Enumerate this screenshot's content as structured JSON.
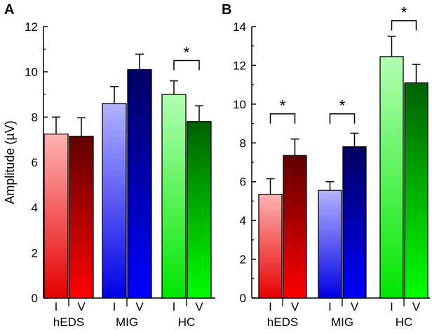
{
  "colors": {
    "hEDS_I": [
      "#ffb3b3",
      "#e60000"
    ],
    "hEDS_V": [
      "#600000",
      "#ff0000"
    ],
    "MIG_I": [
      "#b3b3ff",
      "#0000e6"
    ],
    "MIG_V": [
      "#000060",
      "#0000ff"
    ],
    "HC_I": [
      "#b3ffb3",
      "#00e600"
    ],
    "HC_V": [
      "#006000",
      "#00ff00"
    ]
  },
  "chart_data": [
    {
      "panel": "A",
      "type": "bar",
      "ylabel": "Amplitude (µV)",
      "ylim": [
        0,
        12
      ],
      "yticks": [
        "0",
        "2",
        "4",
        "6",
        "8",
        "10",
        "12"
      ],
      "groups": [
        "hEDS",
        "MIG",
        "HC"
      ],
      "bar_labels": [
        "I",
        "V"
      ],
      "bars": [
        {
          "group": "hEDS",
          "cond": "I",
          "value": 7.25,
          "err": 0.75,
          "color_key": "hEDS_I"
        },
        {
          "group": "hEDS",
          "cond": "V",
          "value": 7.15,
          "err": 0.82,
          "color_key": "hEDS_V"
        },
        {
          "group": "MIG",
          "cond": "I",
          "value": 8.6,
          "err": 0.75,
          "color_key": "MIG_I"
        },
        {
          "group": "MIG",
          "cond": "V",
          "value": 10.1,
          "err": 0.68,
          "color_key": "MIG_V"
        },
        {
          "group": "HC",
          "cond": "I",
          "value": 9.0,
          "err": 0.6,
          "color_key": "HC_I"
        },
        {
          "group": "HC",
          "cond": "V",
          "value": 7.8,
          "err": 0.7,
          "color_key": "HC_V"
        }
      ],
      "significance": [
        {
          "group": "HC",
          "label": "*",
          "y": 10.5
        }
      ]
    },
    {
      "panel": "B",
      "type": "bar",
      "ylabel": "",
      "ylim": [
        0,
        14
      ],
      "yticks": [
        "0",
        "2",
        "4",
        "6",
        "8",
        "10",
        "12",
        "14"
      ],
      "groups": [
        "hEDS",
        "MIG",
        "HC"
      ],
      "bar_labels": [
        "I",
        "V"
      ],
      "bars": [
        {
          "group": "hEDS",
          "cond": "I",
          "value": 5.35,
          "err": 0.8,
          "color_key": "hEDS_I"
        },
        {
          "group": "hEDS",
          "cond": "V",
          "value": 7.35,
          "err": 0.85,
          "color_key": "hEDS_V"
        },
        {
          "group": "MIG",
          "cond": "I",
          "value": 5.55,
          "err": 0.45,
          "color_key": "MIG_I"
        },
        {
          "group": "MIG",
          "cond": "V",
          "value": 7.8,
          "err": 0.7,
          "color_key": "MIG_V"
        },
        {
          "group": "HC",
          "cond": "I",
          "value": 12.45,
          "err": 1.05,
          "color_key": "HC_I"
        },
        {
          "group": "HC",
          "cond": "V",
          "value": 11.1,
          "err": 0.95,
          "color_key": "HC_V"
        }
      ],
      "significance": [
        {
          "group": "hEDS",
          "label": "*",
          "y": 9.5
        },
        {
          "group": "MIG",
          "label": "*",
          "y": 9.5
        },
        {
          "group": "HC",
          "label": "*",
          "y": 14.3
        }
      ]
    }
  ]
}
